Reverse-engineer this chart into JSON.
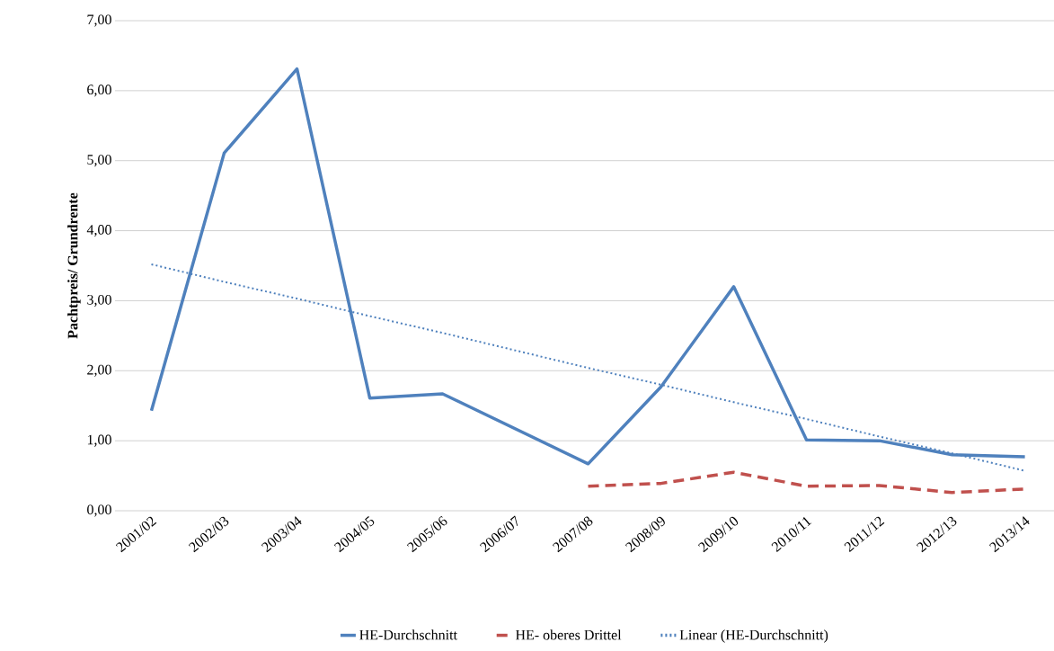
{
  "chart_data": {
    "type": "line",
    "ylabel": "Pachtpreis/ Grundrente",
    "categories": [
      "2001/02",
      "2002/03",
      "2003/04",
      "2004/05",
      "2005/06",
      "2006/07",
      "2007/08",
      "2008/09",
      "2009/10",
      "2010/11",
      "2011/12",
      "2012/13",
      "2013/14"
    ],
    "series": [
      {
        "name": "HE-Durchschnitt",
        "color": "#4f81bd",
        "line_style": "solid",
        "values": [
          1.43,
          5.11,
          6.31,
          1.61,
          1.67,
          1.17,
          0.67,
          1.77,
          3.2,
          1.01,
          1.0,
          0.8,
          0.77
        ]
      },
      {
        "name": "HE- oberes Drittel",
        "color": "#c0504d",
        "line_style": "dashed",
        "values": [
          null,
          null,
          null,
          null,
          null,
          null,
          0.35,
          0.39,
          0.55,
          0.35,
          0.36,
          0.26,
          0.31
        ]
      },
      {
        "name": "Linear (HE-Durchschnitt)",
        "color": "#4f81bd",
        "line_style": "dotted",
        "values": [
          3.52,
          3.27,
          3.03,
          2.78,
          2.54,
          2.29,
          2.04,
          1.8,
          1.55,
          1.31,
          1.06,
          0.82,
          0.57
        ]
      }
    ],
    "ylim": [
      0,
      7
    ],
    "yticks": [
      {
        "value": 0,
        "label": "0,00"
      },
      {
        "value": 1,
        "label": "1,00"
      },
      {
        "value": 2,
        "label": "2,00"
      },
      {
        "value": 3,
        "label": "3,00"
      },
      {
        "value": 4,
        "label": "4,00"
      },
      {
        "value": 5,
        "label": "5,00"
      },
      {
        "value": 6,
        "label": "6,00"
      },
      {
        "value": 7,
        "label": "7,00"
      }
    ],
    "grid": "y",
    "legend": "bottom",
    "marker": "none"
  }
}
